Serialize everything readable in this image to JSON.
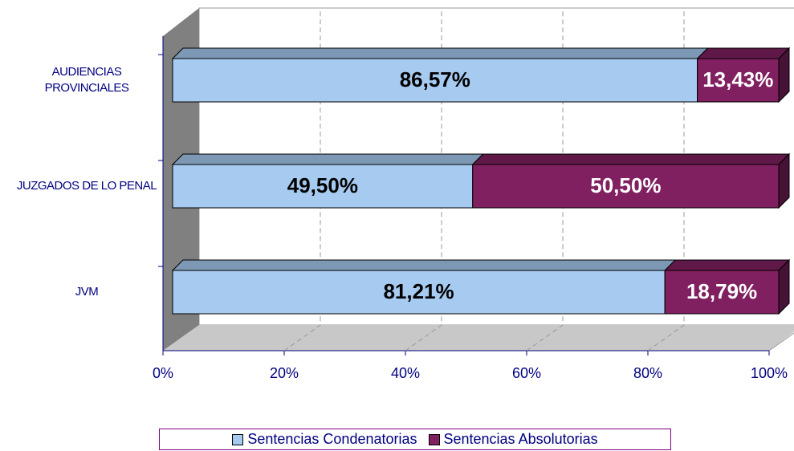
{
  "chart_data": {
    "type": "bar",
    "orientation": "horizontal",
    "stacked": true,
    "categories": [
      "AUDIENCIAS PROVINCIALES",
      "JUZGADOS DE LO PENAL",
      "JVM"
    ],
    "series": [
      {
        "name": "Sentencias Condenatorias",
        "color": "#a6caf0",
        "values": [
          86.57,
          49.5,
          81.21
        ],
        "value_labels": [
          "86,57%",
          "49,50%",
          "81,21%"
        ]
      },
      {
        "name": "Sentencias Absolutorias",
        "color": "#802060",
        "values": [
          13.43,
          50.5,
          18.79
        ],
        "value_labels": [
          "13,43%",
          "50,50%",
          "18,79%"
        ]
      }
    ],
    "xlim": [
      0,
      100
    ],
    "xticks": [
      {
        "value": 0,
        "label": "0%"
      },
      {
        "value": 20,
        "label": "20%"
      },
      {
        "value": 40,
        "label": "40%"
      },
      {
        "value": 60,
        "label": "60%"
      },
      {
        "value": 80,
        "label": "80%"
      },
      {
        "value": 100,
        "label": "100%"
      }
    ],
    "grid": true,
    "legend": "bottom"
  }
}
